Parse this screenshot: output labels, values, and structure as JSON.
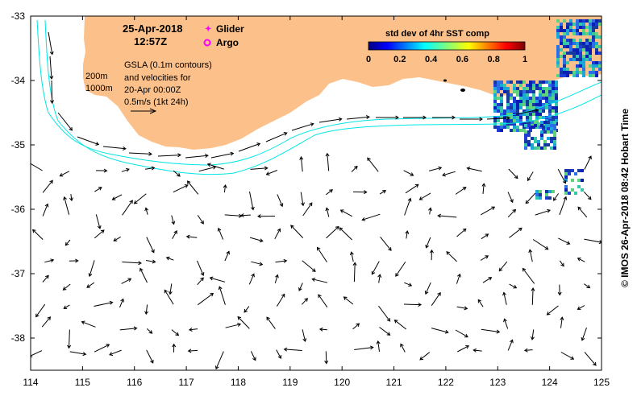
{
  "map": {
    "date": "25-Apr-2018",
    "time": "12:57Z",
    "legend": {
      "glider_label": "Glider",
      "argo_label": "Argo",
      "glider_color": "#ff00ff",
      "argo_color": "#ff00ff"
    },
    "notes": {
      "line1": "GSLA (0.1m contours)",
      "line2": "and velocities for",
      "line3": "20-Apr 00:00Z",
      "line4": "0.5m/s (1kt 24h)"
    },
    "isobaths": {
      "label_200": "200m",
      "label_1000": "1000m",
      "color": "#00e5e5"
    },
    "colorbar": {
      "title": "std dev of 4hr SST comp",
      "ticks": [
        "0",
        "0.2",
        "0.4",
        "0.6",
        "0.8",
        "1"
      ]
    },
    "land_color": "#fcc08a",
    "credit": "© IMOS 26-Apr-2018 08:42 Hobart Time",
    "x_axis": {
      "range": [
        114,
        125
      ],
      "ticks": [
        "114",
        "115",
        "116",
        "117",
        "118",
        "119",
        "120",
        "121",
        "122",
        "123",
        "124",
        "125"
      ]
    },
    "y_axis": {
      "range": [
        -38.5,
        -33
      ],
      "ticks": [
        "-33",
        "-34",
        "-35",
        "-36",
        "-37",
        "-38"
      ]
    }
  }
}
